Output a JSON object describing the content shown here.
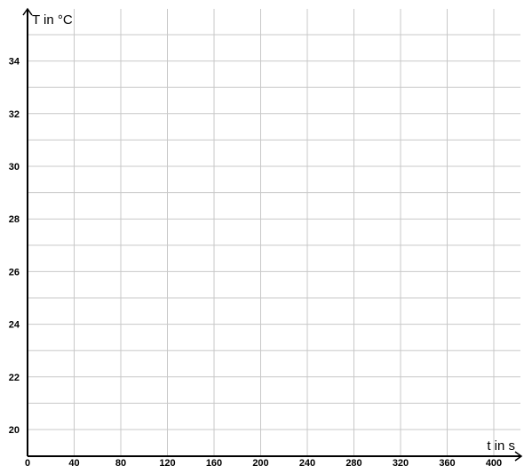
{
  "chart_data": {
    "type": "line",
    "title": "",
    "xlabel": "t in s",
    "ylabel": "T in °C",
    "xlim": [
      0,
      420
    ],
    "ylim": [
      19,
      35.7
    ],
    "x_ticks": [
      0,
      40,
      80,
      120,
      160,
      200,
      240,
      280,
      320,
      360,
      400
    ],
    "y_ticks": [
      20,
      22,
      24,
      26,
      28,
      30,
      32,
      34
    ],
    "x_gridlines": [
      40,
      80,
      120,
      160,
      200,
      240,
      280,
      320,
      360,
      400
    ],
    "y_gridlines": [
      20,
      21,
      22,
      23,
      24,
      25,
      26,
      27,
      28,
      29,
      30,
      31,
      32,
      33,
      34,
      35
    ],
    "grid": true,
    "series": [],
    "colors": {
      "axis": "#000000",
      "grid": "#c8c8c8",
      "background": "#ffffff"
    }
  }
}
